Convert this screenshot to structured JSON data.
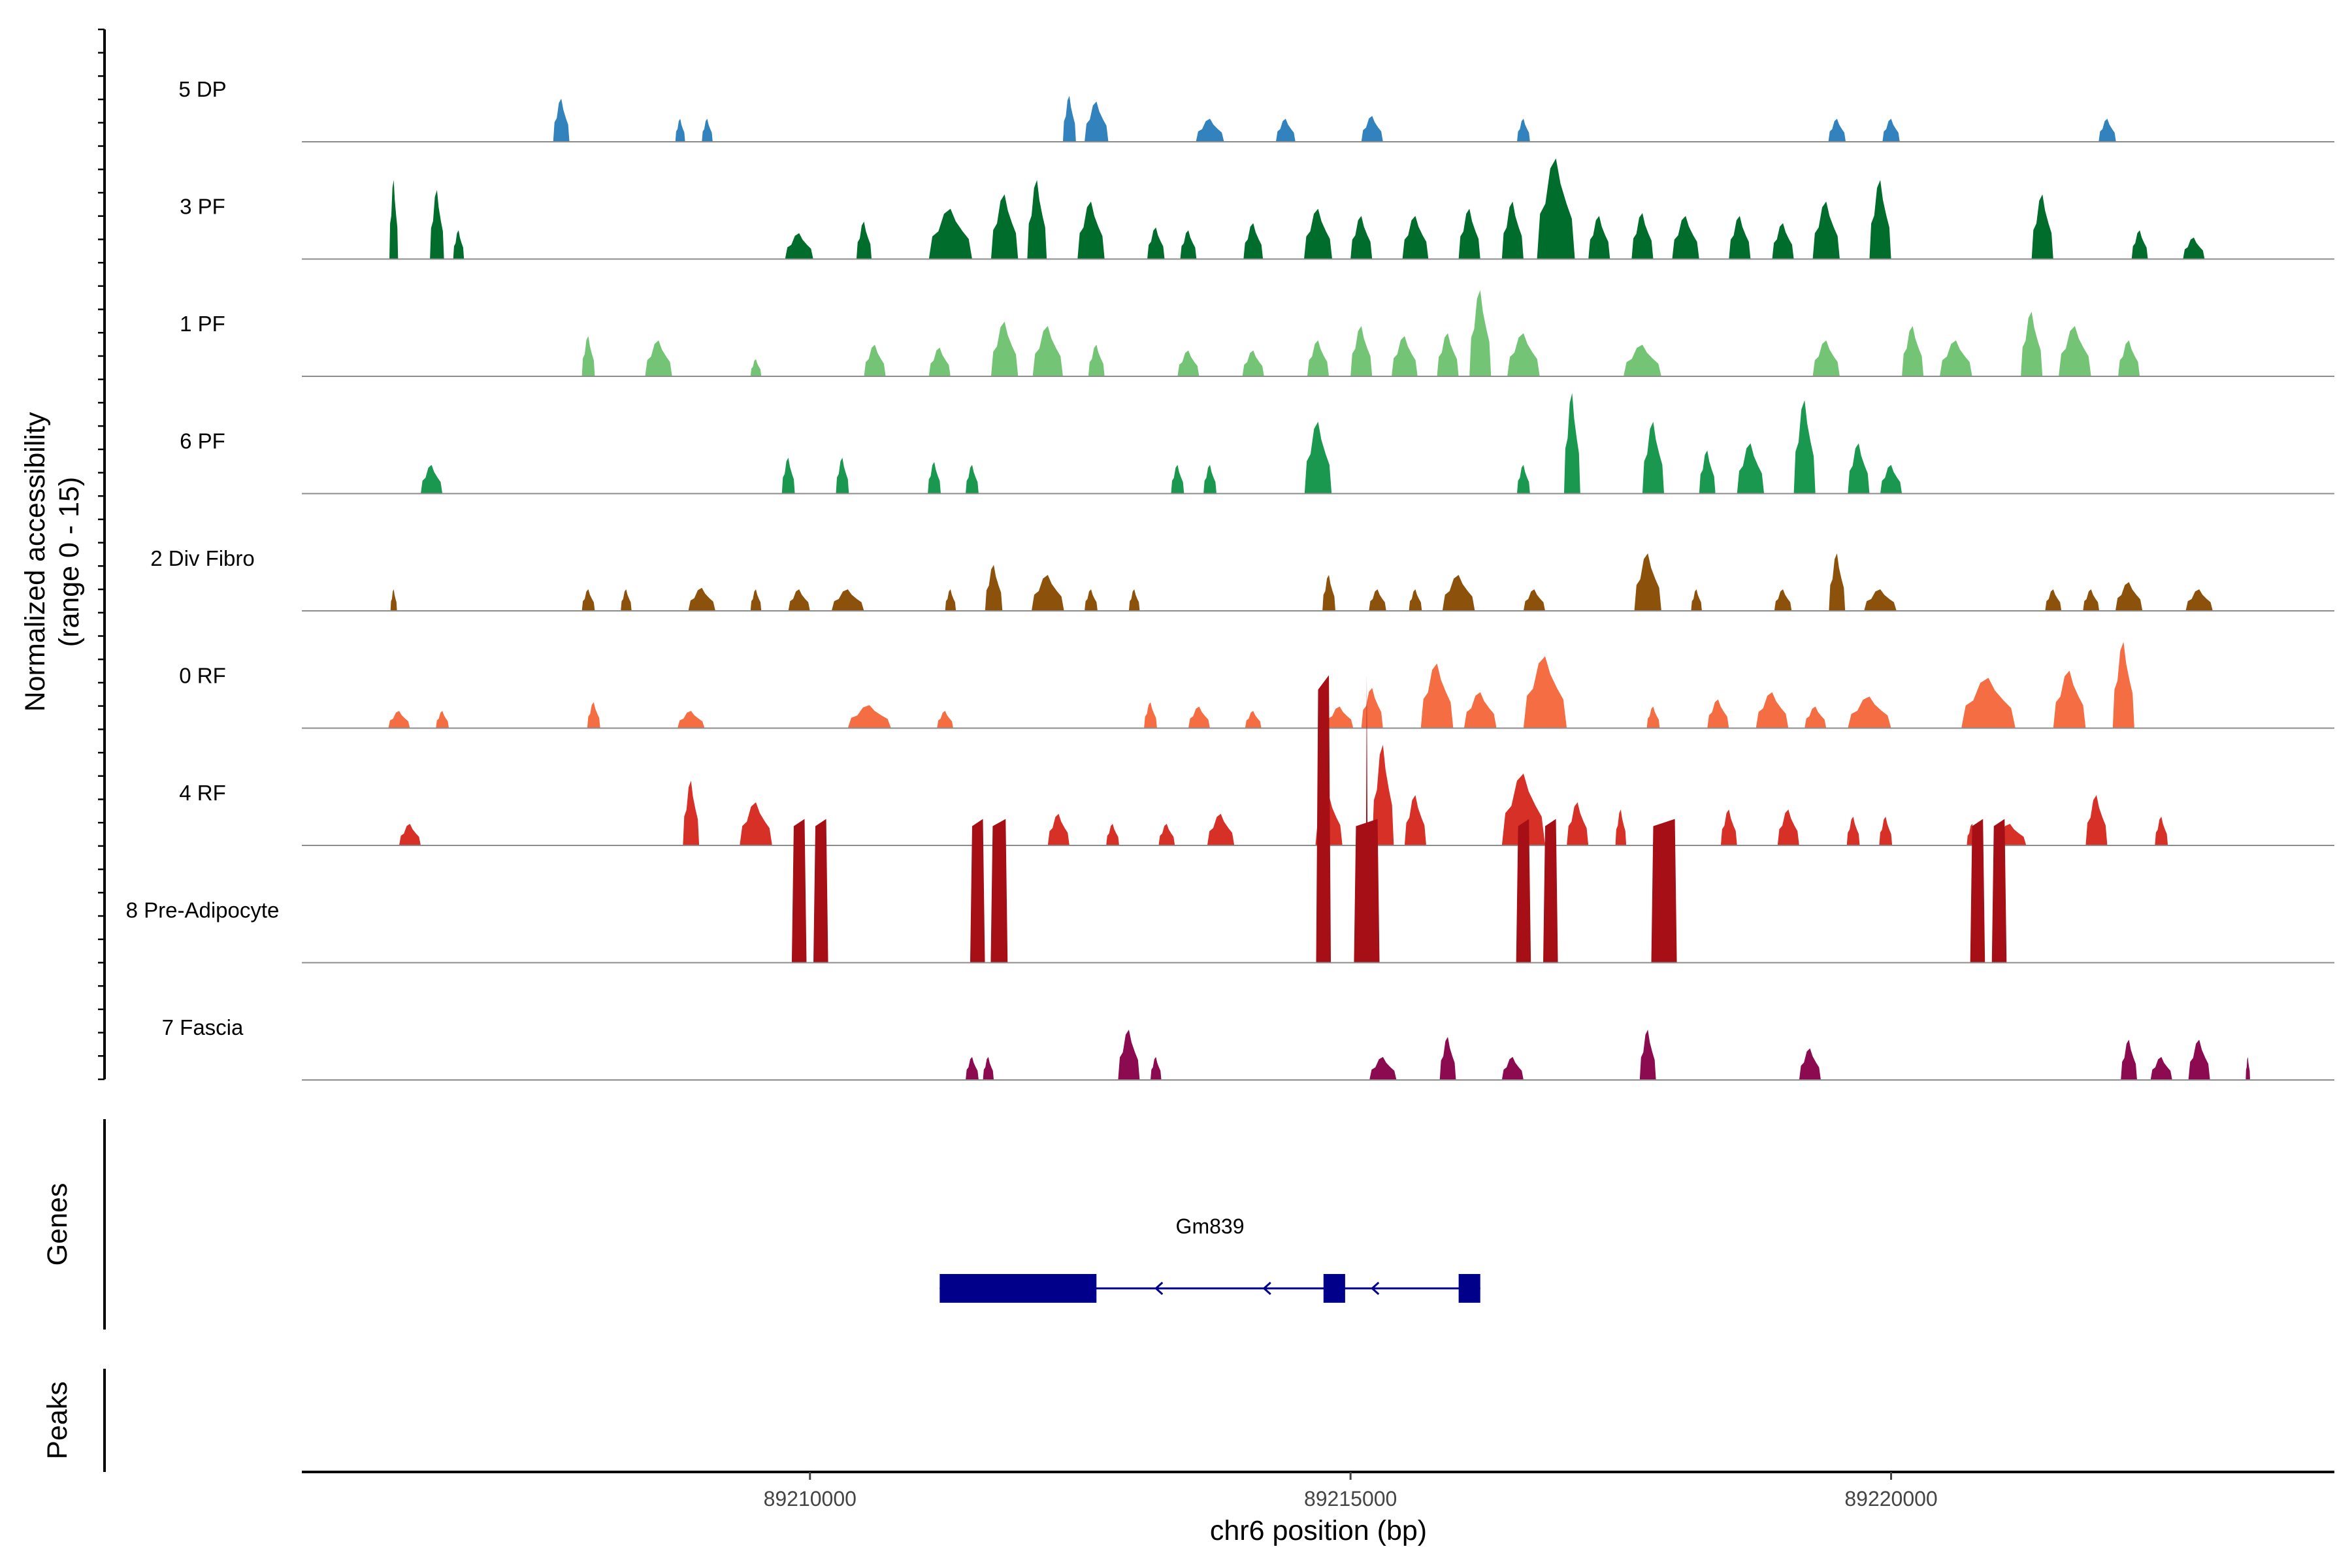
{
  "chart_data": {
    "type": "area",
    "title": "",
    "ylabel_line1": "Normalized accessibility",
    "ylabel_line2": "(range 0 - 15)",
    "xlabel": "chr6 position (bp)",
    "xlim": [
      89205300,
      89224100
    ],
    "y_range": [
      0,
      15
    ],
    "xticks": [
      89210000,
      89215000,
      89220000
    ],
    "xtick_labels": [
      "89210000",
      "89215000",
      "89220000"
    ],
    "tracks": [
      {
        "name": "5 DP",
        "color": "#3182bd",
        "style": "peaks",
        "peaks": [
          [
            89207700,
            3.0,
            150
          ],
          [
            89208800,
            1.6,
            90
          ],
          [
            89209050,
            1.6,
            100
          ],
          [
            89212400,
            3.2,
            120
          ],
          [
            89212650,
            2.8,
            220
          ],
          [
            89213700,
            1.6,
            260
          ],
          [
            89214400,
            1.6,
            180
          ],
          [
            89215200,
            1.8,
            200
          ],
          [
            89216600,
            1.6,
            120
          ],
          [
            89219500,
            1.6,
            160
          ],
          [
            89220000,
            1.6,
            160
          ],
          [
            89222000,
            1.6,
            160
          ]
        ]
      },
      {
        "name": "3 PF",
        "color": "#006d2c",
        "style": "peaks",
        "peaks": [
          [
            89206150,
            5.5,
            80
          ],
          [
            89206550,
            4.8,
            130
          ],
          [
            89206750,
            2.0,
            100
          ],
          [
            89209900,
            1.8,
            260
          ],
          [
            89210500,
            2.6,
            140
          ],
          [
            89211300,
            3.5,
            400
          ],
          [
            89211800,
            4.5,
            250
          ],
          [
            89212100,
            5.5,
            180
          ],
          [
            89212600,
            4.0,
            250
          ],
          [
            89213200,
            2.2,
            160
          ],
          [
            89213500,
            2.0,
            150
          ],
          [
            89214100,
            2.5,
            180
          ],
          [
            89214700,
            3.5,
            260
          ],
          [
            89215100,
            3.0,
            200
          ],
          [
            89215600,
            3.0,
            240
          ],
          [
            89216100,
            3.5,
            200
          ],
          [
            89216500,
            4.0,
            200
          ],
          [
            89216900,
            7.0,
            350
          ],
          [
            89217300,
            3.0,
            200
          ],
          [
            89217700,
            3.2,
            200
          ],
          [
            89218100,
            3.0,
            250
          ],
          [
            89218600,
            3.0,
            200
          ],
          [
            89219000,
            2.5,
            200
          ],
          [
            89219400,
            4.0,
            250
          ],
          [
            89219900,
            5.5,
            200
          ],
          [
            89221400,
            4.5,
            200
          ],
          [
            89222300,
            2.0,
            150
          ],
          [
            89222800,
            1.5,
            200
          ]
        ]
      },
      {
        "name": "1 PF",
        "color": "#74c476",
        "style": "peaks",
        "peaks": [
          [
            89207950,
            2.8,
            120
          ],
          [
            89208600,
            2.5,
            250
          ],
          [
            89209500,
            1.2,
            100
          ],
          [
            89210600,
            2.2,
            200
          ],
          [
            89211200,
            2.0,
            200
          ],
          [
            89211800,
            3.8,
            250
          ],
          [
            89212200,
            3.5,
            280
          ],
          [
            89212650,
            2.2,
            150
          ],
          [
            89213500,
            1.8,
            200
          ],
          [
            89214100,
            1.8,
            200
          ],
          [
            89214700,
            2.5,
            200
          ],
          [
            89215100,
            3.5,
            200
          ],
          [
            89215500,
            2.8,
            240
          ],
          [
            89215900,
            3.0,
            200
          ],
          [
            89216200,
            6.0,
            200
          ],
          [
            89216600,
            3.0,
            300
          ],
          [
            89217700,
            2.2,
            350
          ],
          [
            89219400,
            2.5,
            250
          ],
          [
            89220200,
            3.5,
            200
          ],
          [
            89220600,
            2.5,
            300
          ],
          [
            89221300,
            4.5,
            200
          ],
          [
            89221700,
            3.5,
            300
          ],
          [
            89222200,
            2.5,
            200
          ]
        ]
      },
      {
        "name": "6 PF",
        "color": "#1a9850",
        "style": "peaks",
        "peaks": [
          [
            89206500,
            2.0,
            200
          ],
          [
            89209800,
            2.5,
            120
          ],
          [
            89210300,
            2.5,
            120
          ],
          [
            89211150,
            2.2,
            120
          ],
          [
            89211500,
            2.0,
            120
          ],
          [
            89213400,
            2.0,
            120
          ],
          [
            89213700,
            2.0,
            120
          ],
          [
            89214700,
            5.0,
            250
          ],
          [
            89216600,
            2.0,
            120
          ],
          [
            89217050,
            7.0,
            150
          ],
          [
            89217800,
            5.0,
            200
          ],
          [
            89218300,
            3.0,
            150
          ],
          [
            89218700,
            3.5,
            250
          ],
          [
            89219200,
            6.5,
            200
          ],
          [
            89219700,
            3.5,
            200
          ],
          [
            89220000,
            2.0,
            200
          ]
        ]
      },
      {
        "name": "2 Div Fibro",
        "color": "#8c510a",
        "style": "peaks",
        "peaks": [
          [
            89206150,
            1.5,
            60
          ],
          [
            89207950,
            1.5,
            120
          ],
          [
            89208300,
            1.5,
            100
          ],
          [
            89209000,
            1.6,
            250
          ],
          [
            89209500,
            1.5,
            100
          ],
          [
            89209900,
            1.5,
            200
          ],
          [
            89210350,
            1.5,
            300
          ],
          [
            89211300,
            1.5,
            100
          ],
          [
            89211700,
            3.2,
            160
          ],
          [
            89212200,
            2.5,
            300
          ],
          [
            89212600,
            1.5,
            120
          ],
          [
            89213000,
            1.5,
            100
          ],
          [
            89214800,
            2.5,
            120
          ],
          [
            89215250,
            1.5,
            160
          ],
          [
            89215600,
            1.5,
            120
          ],
          [
            89216000,
            2.5,
            300
          ],
          [
            89216700,
            1.5,
            200
          ],
          [
            89217750,
            4.0,
            250
          ],
          [
            89218200,
            1.5,
            100
          ],
          [
            89219000,
            1.5,
            160
          ],
          [
            89219500,
            4.0,
            150
          ],
          [
            89219900,
            1.5,
            300
          ],
          [
            89221500,
            1.5,
            150
          ],
          [
            89221850,
            1.5,
            150
          ],
          [
            89222200,
            2.0,
            250
          ],
          [
            89222850,
            1.5,
            250
          ]
        ]
      },
      {
        "name": "0 RF",
        "color": "#f46d43",
        "style": "peaks",
        "peaks": [
          [
            89206200,
            1.2,
            200
          ],
          [
            89206600,
            1.2,
            120
          ],
          [
            89208000,
            1.8,
            120
          ],
          [
            89208900,
            1.2,
            250
          ],
          [
            89210550,
            1.6,
            400
          ],
          [
            89211250,
            1.2,
            150
          ],
          [
            89213150,
            1.8,
            120
          ],
          [
            89213600,
            1.5,
            200
          ],
          [
            89214100,
            1.2,
            150
          ],
          [
            89214900,
            1.5,
            250
          ],
          [
            89215200,
            2.8,
            200
          ],
          [
            89215800,
            4.5,
            300
          ],
          [
            89216200,
            2.5,
            300
          ],
          [
            89216800,
            5.0,
            400
          ],
          [
            89217800,
            1.5,
            120
          ],
          [
            89218400,
            2.0,
            200
          ],
          [
            89218900,
            2.5,
            300
          ],
          [
            89219300,
            1.5,
            200
          ],
          [
            89219800,
            2.2,
            400
          ],
          [
            89220900,
            3.5,
            500
          ],
          [
            89221650,
            4.0,
            300
          ],
          [
            89222150,
            6.0,
            200
          ]
        ]
      },
      {
        "name": "4 RF",
        "color": "#d73027",
        "style": "peaks",
        "peaks": [
          [
            89206300,
            1.5,
            200
          ],
          [
            89208900,
            4.5,
            150
          ],
          [
            89209500,
            3.0,
            300
          ],
          [
            89212300,
            2.2,
            200
          ],
          [
            89212800,
            1.5,
            120
          ],
          [
            89213300,
            1.5,
            150
          ],
          [
            89213800,
            2.2,
            250
          ],
          [
            89214800,
            3.5,
            250
          ],
          [
            89215300,
            7.0,
            200
          ],
          [
            89215600,
            3.5,
            200
          ],
          [
            89216600,
            5.0,
            400
          ],
          [
            89217100,
            3.0,
            200
          ],
          [
            89217500,
            2.5,
            100
          ],
          [
            89218500,
            2.5,
            150
          ],
          [
            89219050,
            2.5,
            200
          ],
          [
            89219650,
            2.0,
            120
          ],
          [
            89219950,
            2.0,
            120
          ],
          [
            89220750,
            1.5,
            100
          ],
          [
            89221100,
            1.5,
            300
          ],
          [
            89221900,
            3.5,
            200
          ],
          [
            89222500,
            2.0,
            120
          ]
        ]
      },
      {
        "name": "8 Pre-Adipocyte",
        "color": "#a50f15",
        "style": "blocks",
        "peaks": [
          [
            89209900,
            10.0,
            100
          ],
          [
            89210100,
            10.0,
            100
          ],
          [
            89211550,
            10.0,
            100
          ],
          [
            89211750,
            10.0,
            120
          ],
          [
            89214750,
            20.0,
            100
          ],
          [
            89215150,
            10.0,
            200
          ],
          [
            89216600,
            10.0,
            100
          ],
          [
            89216850,
            10.0,
            100
          ],
          [
            89217900,
            10.0,
            200
          ],
          [
            89220800,
            10.0,
            100
          ],
          [
            89221000,
            10.0,
            100
          ]
        ],
        "spikes": [
          [
            89215150,
            20.0,
            12
          ]
        ]
      },
      {
        "name": "7 Fascia",
        "color": "#8b0a50",
        "style": "peaks",
        "peaks": [
          [
            89211500,
            1.6,
            120
          ],
          [
            89211650,
            1.6,
            100
          ],
          [
            89212950,
            3.5,
            200
          ],
          [
            89213200,
            1.6,
            100
          ],
          [
            89215300,
            1.6,
            250
          ],
          [
            89215900,
            3.0,
            150
          ],
          [
            89216500,
            1.6,
            200
          ],
          [
            89217750,
            3.5,
            150
          ],
          [
            89219250,
            2.2,
            200
          ],
          [
            89222200,
            2.8,
            150
          ],
          [
            89222500,
            1.6,
            200
          ],
          [
            89222850,
            2.8,
            200
          ],
          [
            89223300,
            1.6,
            40
          ]
        ]
      }
    ],
    "genes": [
      {
        "name": "Gm839",
        "start": 89211200,
        "end": 89216200,
        "strand": "-",
        "exons": [
          [
            89211200,
            89212650
          ],
          [
            89214750,
            89214950
          ],
          [
            89216000,
            89216200
          ]
        ],
        "arrows": [
          89213200,
          89214200,
          89215200
        ]
      }
    ],
    "side_panels": [
      "Genes",
      "Peaks"
    ]
  }
}
